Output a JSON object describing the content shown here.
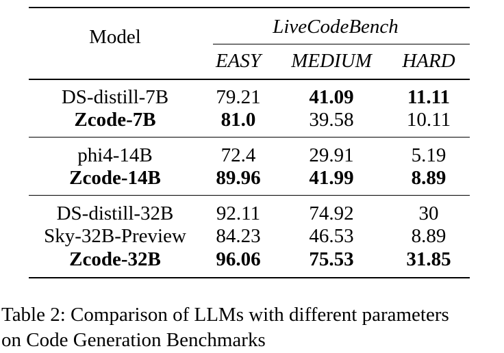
{
  "table": {
    "header": {
      "model": "Model",
      "group": "LiveCodeBench",
      "columns": [
        "EASY",
        "MEDIUM",
        "HARD"
      ]
    },
    "rows": [
      {
        "model": "DS-distill-7B",
        "values": [
          "79.21",
          "41.09",
          "11.11"
        ],
        "model_bold": false,
        "bold": [
          false,
          true,
          true
        ]
      },
      {
        "model": "Zcode-7B",
        "values": [
          "81.0",
          "39.58",
          "10.11"
        ],
        "model_bold": true,
        "bold": [
          true,
          false,
          false
        ]
      },
      {
        "model": "phi4-14B",
        "values": [
          "72.4",
          "29.91",
          "5.19"
        ],
        "model_bold": false,
        "bold": [
          false,
          false,
          false
        ]
      },
      {
        "model": "Zcode-14B",
        "values": [
          "89.96",
          "41.99",
          "8.89"
        ],
        "model_bold": true,
        "bold": [
          true,
          true,
          true
        ]
      },
      {
        "model": "DS-distill-32B",
        "values": [
          "92.11",
          "74.92",
          "30"
        ],
        "model_bold": false,
        "bold": [
          false,
          false,
          false
        ]
      },
      {
        "model": "Sky-32B-Preview",
        "values": [
          "84.23",
          "46.53",
          "8.89"
        ],
        "model_bold": false,
        "bold": [
          false,
          false,
          false
        ]
      },
      {
        "model": "Zcode-32B",
        "values": [
          "96.06",
          "75.53",
          "31.85"
        ],
        "model_bold": true,
        "bold": [
          true,
          true,
          true
        ]
      }
    ]
  },
  "caption": {
    "line1": "Table 2: Comparison of LLMs with different parameters",
    "line2": "on Code Generation Benchmarks"
  }
}
